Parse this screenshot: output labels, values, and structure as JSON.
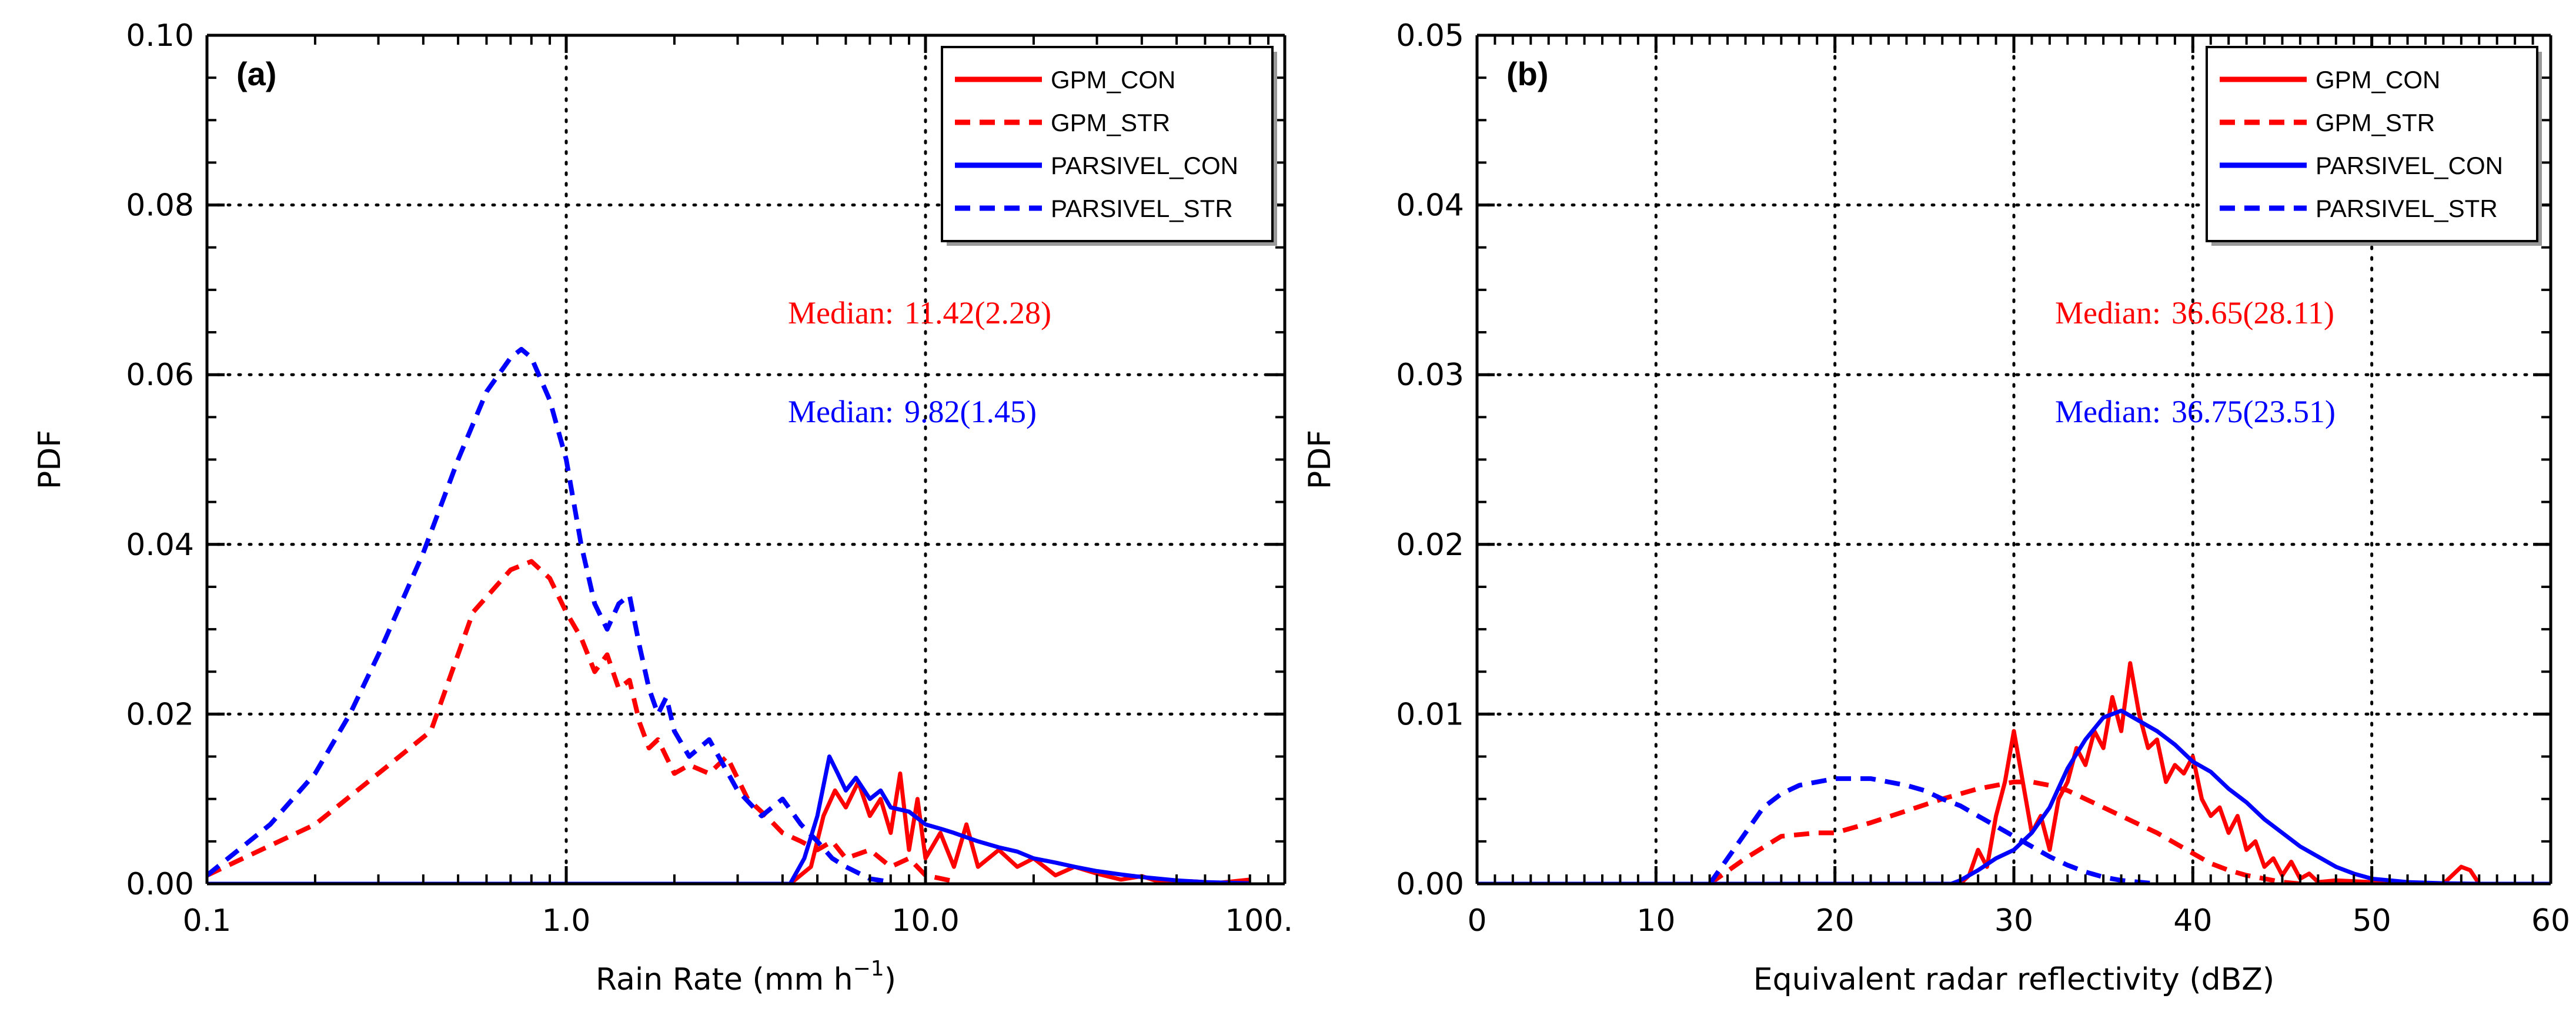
{
  "chart_data": [
    {
      "type": "line",
      "panel_label": "(a)",
      "xlabel": "Rain Rate (mm h",
      "xlabel_sup": "−1",
      "xlabel_close": ")",
      "ylabel": "PDF",
      "xscale": "log",
      "xlim": [
        0.1,
        100
      ],
      "ylim": [
        0,
        0.1
      ],
      "xticks": [
        0.1,
        1,
        10,
        100
      ],
      "xtick_labels": [
        "0.1",
        "1.0",
        "10.0",
        "100."
      ],
      "yticks": [
        0,
        0.02,
        0.04,
        0.06,
        0.08,
        0.1
      ],
      "ytick_labels": [
        "0.00",
        "0.02",
        "0.04",
        "0.06",
        "0.08",
        "0.10"
      ],
      "grid": "dotted",
      "legend_position": "top-right",
      "legend": [
        "GPM_CON",
        "GPM_STR",
        "PARSIVEL_CON",
        "PARSIVEL_STR"
      ],
      "annotations": [
        {
          "label": "Median:",
          "value": "11.42(2.28)",
          "color": "#ff0000"
        },
        {
          "label": "Median:",
          "value": "9.82(1.45)",
          "color": "#0000ff"
        }
      ],
      "series": [
        {
          "name": "GPM_CON",
          "color": "#ff0000",
          "dash": "solid",
          "x": [
            0.1,
            1,
            3,
            4.2,
            4.8,
            5.2,
            5.6,
            6,
            6.5,
            7,
            7.5,
            8,
            8.5,
            9,
            9.5,
            10,
            11,
            12,
            13,
            14,
            16,
            18,
            20,
            23,
            26,
            30,
            35,
            40,
            45,
            55,
            65,
            80
          ],
          "y": [
            0,
            0,
            0,
            0,
            0.002,
            0.008,
            0.011,
            0.009,
            0.012,
            0.008,
            0.01,
            0.006,
            0.013,
            0.004,
            0.01,
            0.003,
            0.006,
            0.002,
            0.007,
            0.002,
            0.004,
            0.002,
            0.003,
            0.001,
            0.002,
            0.0012,
            0.0005,
            0.0009,
            0.0002,
            0.0003,
            0.0001,
            0.0005
          ]
        },
        {
          "name": "GPM_STR",
          "color": "#ff0000",
          "dash": "dashed",
          "x": [
            0.1,
            0.2,
            0.3,
            0.42,
            0.55,
            0.7,
            0.8,
            0.9,
            1.0,
            1.1,
            1.2,
            1.3,
            1.4,
            1.5,
            1.6,
            1.7,
            1.8,
            2.0,
            2.2,
            2.5,
            2.8,
            3.2,
            3.6,
            4,
            4.5,
            5,
            5.5,
            6,
            7,
            8,
            9,
            10,
            12
          ],
          "y": [
            0.001,
            0.007,
            0.013,
            0.018,
            0.032,
            0.037,
            0.038,
            0.036,
            0.032,
            0.029,
            0.025,
            0.027,
            0.023,
            0.024,
            0.019,
            0.016,
            0.017,
            0.013,
            0.014,
            0.013,
            0.015,
            0.01,
            0.008,
            0.006,
            0.005,
            0.004,
            0.005,
            0.003,
            0.004,
            0.002,
            0.003,
            0.001,
            0.0003
          ]
        },
        {
          "name": "PARSIVEL_CON",
          "color": "#0000ff",
          "dash": "solid",
          "x": [
            0.1,
            1,
            4.2,
            4.6,
            5.0,
            5.4,
            5.7,
            6.0,
            6.4,
            7,
            7.5,
            8,
            9,
            10,
            11,
            12,
            14,
            16,
            18,
            20,
            23,
            26,
            30,
            35,
            40,
            50,
            60,
            80
          ],
          "y": [
            0,
            0,
            0,
            0.003,
            0.008,
            0.015,
            0.013,
            0.011,
            0.0125,
            0.01,
            0.011,
            0.009,
            0.0085,
            0.007,
            0.0065,
            0.006,
            0.005,
            0.0043,
            0.0038,
            0.003,
            0.0025,
            0.002,
            0.0015,
            0.0011,
            0.0008,
            0.0004,
            0.0002,
            5e-05
          ]
        },
        {
          "name": "PARSIVEL_STR",
          "color": "#0000ff",
          "dash": "dashed",
          "x": [
            0.1,
            0.15,
            0.2,
            0.25,
            0.3,
            0.4,
            0.5,
            0.6,
            0.7,
            0.75,
            0.8,
            0.9,
            1.0,
            1.1,
            1.2,
            1.3,
            1.4,
            1.5,
            1.6,
            1.7,
            1.8,
            1.9,
            2.0,
            2.2,
            2.5,
            3.0,
            3.5,
            4.0,
            4.5,
            5.0,
            5.5,
            6.0,
            7,
            8
          ],
          "y": [
            0.001,
            0.007,
            0.013,
            0.02,
            0.027,
            0.039,
            0.05,
            0.058,
            0.062,
            0.063,
            0.062,
            0.057,
            0.05,
            0.04,
            0.033,
            0.03,
            0.033,
            0.034,
            0.028,
            0.023,
            0.02,
            0.022,
            0.018,
            0.015,
            0.017,
            0.011,
            0.008,
            0.01,
            0.007,
            0.005,
            0.003,
            0.002,
            0.0006,
            0.0002
          ]
        }
      ]
    },
    {
      "type": "line",
      "panel_label": "(b)",
      "xlabel": "Equivalent radar reflectivity (dBZ)",
      "ylabel": "PDF",
      "xscale": "linear",
      "xlim": [
        0,
        60
      ],
      "ylim": [
        0,
        0.05
      ],
      "xticks": [
        0,
        10,
        20,
        30,
        40,
        50,
        60
      ],
      "xtick_labels": [
        "0",
        "10",
        "20",
        "30",
        "40",
        "50",
        "60"
      ],
      "yticks": [
        0,
        0.01,
        0.02,
        0.03,
        0.04,
        0.05
      ],
      "ytick_labels": [
        "0.00",
        "0.01",
        "0.02",
        "0.03",
        "0.04",
        "0.05"
      ],
      "grid": "dotted",
      "legend_position": "top-right",
      "legend": [
        "GPM_CON",
        "GPM_STR",
        "PARSIVEL_CON",
        "PARSIVEL_STR"
      ],
      "annotations": [
        {
          "label": "Median:",
          "value": "36.65(28.11)",
          "color": "#ff0000"
        },
        {
          "label": "Median:",
          "value": "36.75(23.51)",
          "color": "#0000ff"
        }
      ],
      "series": [
        {
          "name": "GPM_CON",
          "color": "#ff0000",
          "dash": "solid",
          "x": [
            0,
            27,
            27.5,
            28,
            28.5,
            29,
            29.5,
            30,
            30.5,
            31,
            31.5,
            32,
            32.5,
            33,
            33.5,
            34,
            34.5,
            35,
            35.5,
            36,
            36.5,
            37,
            37.5,
            38,
            38.5,
            39,
            39.5,
            40,
            40.5,
            41,
            41.5,
            42,
            42.5,
            43,
            43.5,
            44,
            44.5,
            45,
            45.5,
            46,
            46.5,
            47,
            48,
            50,
            52,
            54,
            55,
            55.5,
            56,
            60
          ],
          "y": [
            0,
            0,
            0.0005,
            0.002,
            0.001,
            0.004,
            0.006,
            0.009,
            0.006,
            0.003,
            0.004,
            0.002,
            0.005,
            0.006,
            0.008,
            0.007,
            0.009,
            0.008,
            0.011,
            0.009,
            0.013,
            0.01,
            0.008,
            0.0085,
            0.006,
            0.007,
            0.0065,
            0.0075,
            0.005,
            0.004,
            0.0045,
            0.003,
            0.004,
            0.002,
            0.0025,
            0.001,
            0.0015,
            0.0005,
            0.0013,
            0.0003,
            0.0006,
            0.0001,
            0.0002,
            0.0001,
            0,
            0,
            0.001,
            0.0008,
            0,
            0
          ]
        },
        {
          "name": "GPM_STR",
          "color": "#ff0000",
          "dash": "dashed",
          "x": [
            13,
            15,
            17,
            19,
            20,
            22,
            24,
            26,
            28,
            30,
            31,
            32,
            33,
            34,
            35,
            36,
            37,
            38,
            39,
            40,
            41,
            42,
            43,
            44,
            45,
            46
          ],
          "y": [
            0,
            0.0015,
            0.0028,
            0.003,
            0.003,
            0.0036,
            0.0043,
            0.005,
            0.0056,
            0.006,
            0.006,
            0.0058,
            0.0055,
            0.005,
            0.0045,
            0.004,
            0.0035,
            0.003,
            0.0024,
            0.0018,
            0.0012,
            0.0008,
            0.0005,
            0.0003,
            0.0001,
            0
          ]
        },
        {
          "name": "PARSIVEL_CON",
          "color": "#0000ff",
          "dash": "solid",
          "x": [
            0,
            26.5,
            27,
            28,
            29,
            30,
            31,
            32,
            33,
            34,
            35,
            36,
            37,
            38,
            39,
            40,
            41,
            42,
            43,
            44,
            45,
            46,
            47,
            48,
            49,
            50,
            52,
            54,
            56,
            60
          ],
          "y": [
            0,
            0,
            0.0002,
            0.0008,
            0.0015,
            0.002,
            0.003,
            0.0045,
            0.0068,
            0.0085,
            0.0098,
            0.0102,
            0.0096,
            0.009,
            0.0082,
            0.0072,
            0.0066,
            0.0056,
            0.0048,
            0.0038,
            0.003,
            0.0022,
            0.0016,
            0.001,
            0.0006,
            0.0003,
            0.0001,
            3e-05,
            0,
            0
          ]
        },
        {
          "name": "PARSIVEL_STR",
          "color": "#0000ff",
          "dash": "dashed",
          "x": [
            13,
            14,
            15,
            16,
            17,
            18,
            19,
            20,
            21,
            22,
            23,
            24,
            25,
            26,
            27,
            28,
            29,
            30,
            31,
            32,
            33,
            34,
            35,
            36,
            37,
            38
          ],
          "y": [
            0,
            0.0015,
            0.003,
            0.0045,
            0.0053,
            0.0058,
            0.006,
            0.0062,
            0.0062,
            0.0062,
            0.006,
            0.0058,
            0.0055,
            0.005,
            0.0046,
            0.004,
            0.0034,
            0.0028,
            0.0022,
            0.0016,
            0.0011,
            0.0007,
            0.0004,
            0.0002,
            0.0001,
            0
          ]
        }
      ]
    }
  ]
}
